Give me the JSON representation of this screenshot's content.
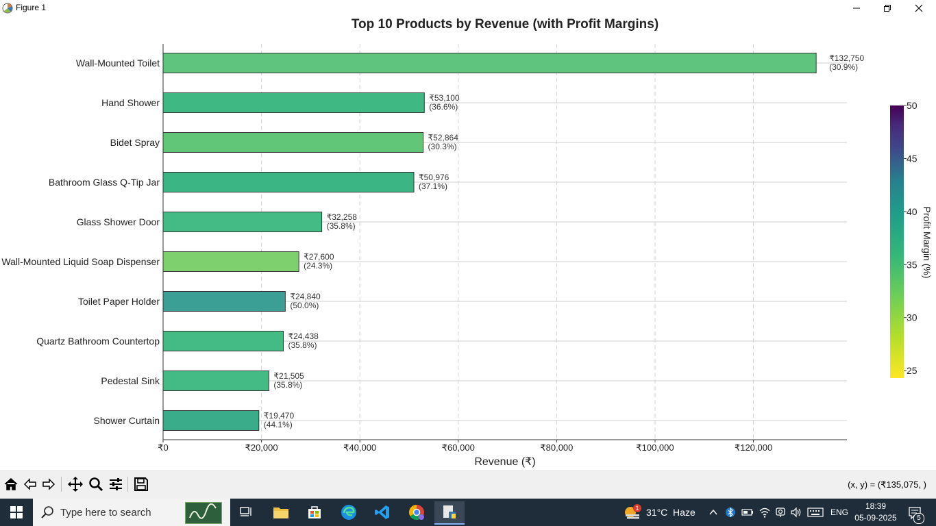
{
  "window": {
    "title": "Figure 1"
  },
  "chart_data": {
    "type": "bar",
    "orientation": "horizontal",
    "title": "Top 10 Products by Revenue (with Profit Margins)",
    "xlabel": "Revenue (₹)",
    "ylabel": "",
    "xlim": [
      0,
      139000
    ],
    "xticks": [
      0,
      20000,
      40000,
      60000,
      80000,
      100000,
      120000
    ],
    "xtick_labels": [
      "₹0",
      "₹20,000",
      "₹40,000",
      "₹60,000",
      "₹80,000",
      "₹100,000",
      "₹120,000"
    ],
    "grid": "x-axis dashed",
    "categories": [
      "Wall-Mounted Toilet",
      "Hand Shower",
      "Bidet Spray",
      "Bathroom Glass Q-Tip Jar",
      "Glass Shower Door",
      "Wall-Mounted Liquid Soap Dispenser",
      "Toilet Paper Holder",
      "Quartz Bathroom Countertop",
      "Pedestal Sink",
      "Shower Curtain"
    ],
    "values": [
      132750,
      53100,
      52864,
      50976,
      32258,
      27600,
      24840,
      24438,
      21505,
      19470
    ],
    "value_labels": [
      "₹132,750",
      "₹53,100",
      "₹52,864",
      "₹50,976",
      "₹32,258",
      "₹27,600",
      "₹24,840",
      "₹24,438",
      "₹21,505",
      "₹19,470"
    ],
    "profit_margins": [
      30.9,
      36.6,
      30.3,
      37.1,
      35.8,
      24.3,
      50.0,
      35.8,
      35.8,
      44.1
    ],
    "margin_labels": [
      "(30.9%)",
      "(36.6%)",
      "(30.3%)",
      "(37.1%)",
      "(35.8%)",
      "(24.3%)",
      "(50.0%)",
      "(35.8%)",
      "(35.8%)",
      "(44.1%)"
    ],
    "bar_colors": [
      "#5ec47e",
      "#3fb883",
      "#62c679",
      "#3cb584",
      "#44bb84",
      "#7ed06e",
      "#3b9f95",
      "#44bb84",
      "#44bb84",
      "#3aac8a"
    ],
    "colorbar": {
      "label": "Profit Margin (%)",
      "ticks": [
        "50",
        "45",
        "40",
        "35",
        "30",
        "25"
      ],
      "range": [
        24.3,
        50.0
      ],
      "colormap": "viridis (reversed)"
    }
  },
  "toolbar": {
    "buttons": [
      "home-icon",
      "back-icon",
      "forward-icon",
      "pan-icon",
      "zoom-icon",
      "configure-icon",
      "save-icon"
    ],
    "coord_readout": "(x, y) = (₹135,075, )"
  },
  "taskbar": {
    "search_placeholder": "Type here to search",
    "weather_badge": "1",
    "weather": "31°C  Haze",
    "language": "ENG",
    "time": "18:39",
    "date": "05-09-2025",
    "notifications": "5"
  }
}
